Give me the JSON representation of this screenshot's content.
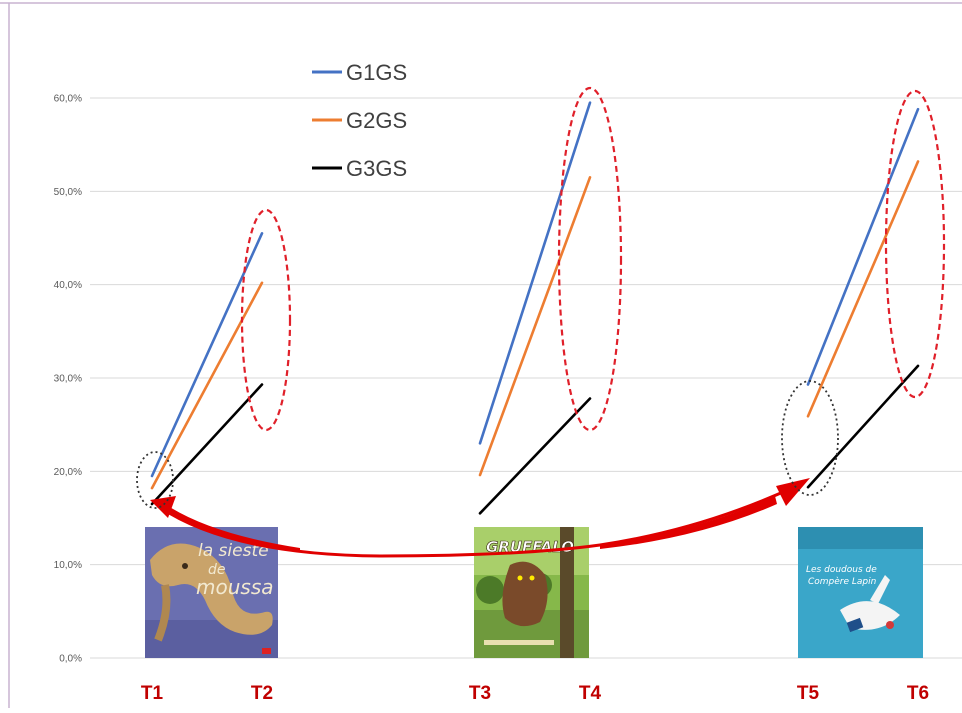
{
  "chart_data": {
    "type": "line",
    "title": "",
    "xlabel": "",
    "ylabel": "",
    "ylim": [
      0,
      60
    ],
    "y_ticks": [
      "0,0%",
      "10,0%",
      "20,0%",
      "30,0%",
      "40,0%",
      "50,0%",
      "60,0%"
    ],
    "x_categories": [
      "T1",
      "T2",
      "T3",
      "T4",
      "T5",
      "T6"
    ],
    "grid": true,
    "legend_position": "top-left",
    "series": [
      {
        "name": "G1GS",
        "color": "#4472c4",
        "segments": [
          {
            "x": [
              "T1",
              "T2"
            ],
            "values": [
              19.5,
              45.5
            ]
          },
          {
            "x": [
              "T3",
              "T4"
            ],
            "values": [
              23.0,
              59.5
            ]
          },
          {
            "x": [
              "T5",
              "T6"
            ],
            "values": [
              29.3,
              58.8
            ]
          }
        ]
      },
      {
        "name": "G2GS",
        "color": "#ed7d31",
        "segments": [
          {
            "x": [
              "T1",
              "T2"
            ],
            "values": [
              18.2,
              40.2
            ]
          },
          {
            "x": [
              "T3",
              "T4"
            ],
            "values": [
              19.6,
              51.5
            ]
          },
          {
            "x": [
              "T5",
              "T6"
            ],
            "values": [
              25.9,
              53.2
            ]
          }
        ]
      },
      {
        "name": "G3GS",
        "color": "#000000",
        "segments": [
          {
            "x": [
              "T1",
              "T2"
            ],
            "values": [
              16.5,
              29.3
            ]
          },
          {
            "x": [
              "T3",
              "T4"
            ],
            "values": [
              15.5,
              27.8
            ]
          },
          {
            "x": [
              "T5",
              "T6"
            ],
            "values": [
              18.3,
              31.3
            ]
          }
        ]
      }
    ],
    "annotations": {
      "red_dashed_ellipses_at": [
        "T2",
        "T4",
        "T6"
      ],
      "black_dotted_ellipses_at": [
        "T1",
        "T5"
      ],
      "red_arrow": {
        "from": "T1",
        "to": "T5",
        "via": "T3"
      },
      "book_covers": [
        {
          "at": "T1",
          "text": "la sieste de moussa",
          "color": "#6a6fb0"
        },
        {
          "at": "T3",
          "text": "GRUFFALO",
          "color": "#6f9a3d"
        },
        {
          "at": "T5",
          "text": "Les doudous de Compère Lapin",
          "color": "#3aa6c9"
        }
      ]
    }
  },
  "colors": {
    "red_label": "#c00000",
    "ellipse_red": "#e0202a",
    "ellipse_black": "#333333",
    "grid": "#d9d9d9",
    "frame": "#c8b3d0"
  },
  "icons": [
    "book-cover-sieste-moussa",
    "book-cover-gruffalo",
    "book-cover-doudous"
  ]
}
